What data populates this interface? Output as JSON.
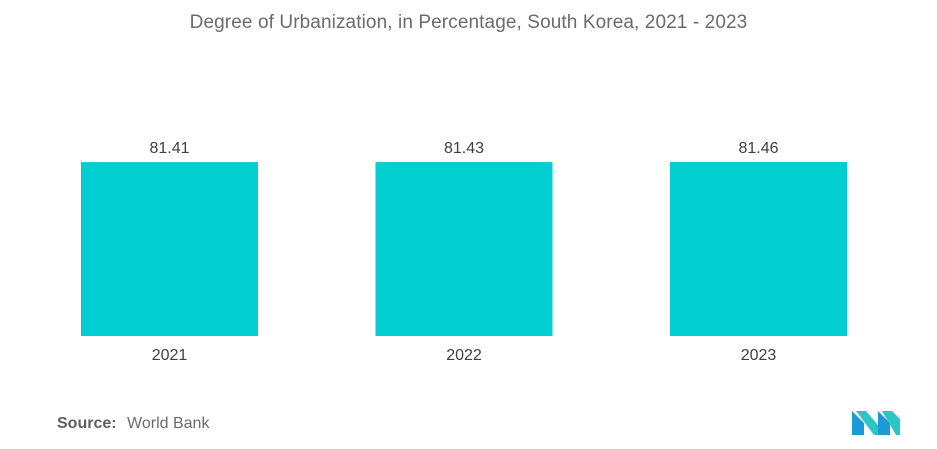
{
  "chart_data": {
    "type": "bar",
    "title": "Degree of Urbanization, in Percentage, South Korea, 2021 - 2023",
    "categories": [
      "2021",
      "2022",
      "2023"
    ],
    "values": [
      81.41,
      81.43,
      81.46
    ],
    "value_labels": [
      "81.41",
      "81.43",
      "81.46"
    ],
    "bar_color": "#00CED1",
    "ylim": [
      0,
      81.46
    ],
    "grid": false,
    "legend": "none"
  },
  "footer": {
    "source_label": "Source:",
    "source_text": "World Bank"
  },
  "logo": {
    "icon": "mordor-intelligence-logo-icon",
    "colors": [
      "#1a9bd7",
      "#2cc5c5"
    ]
  }
}
